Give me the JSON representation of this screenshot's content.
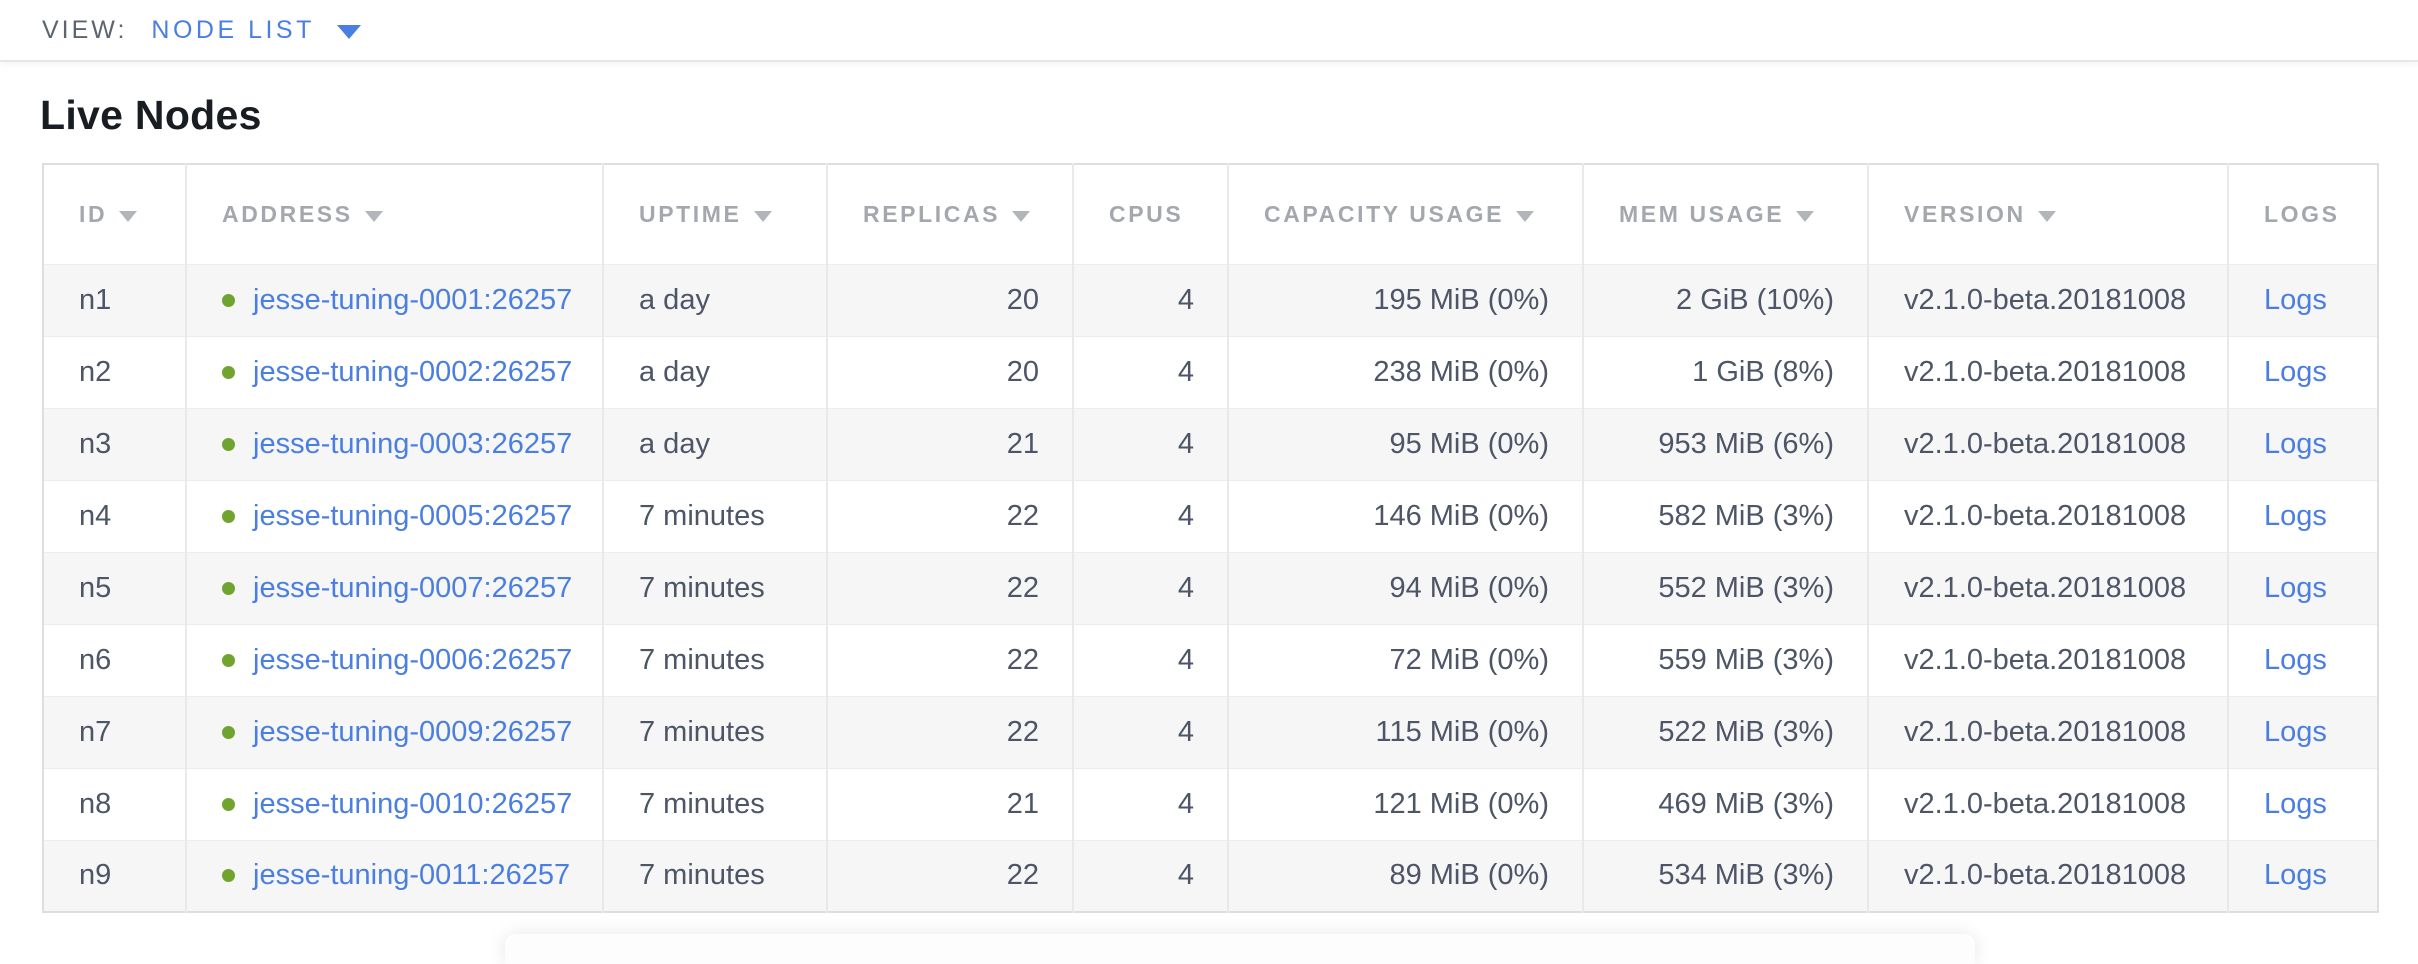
{
  "view_bar": {
    "label": "VIEW:",
    "selected": "NODE LIST"
  },
  "page": {
    "title": "Live Nodes"
  },
  "table": {
    "columns": [
      {
        "key": "id",
        "label": "ID",
        "sortable": true,
        "align": "left"
      },
      {
        "key": "address",
        "label": "ADDRESS",
        "sortable": true,
        "align": "left"
      },
      {
        "key": "uptime",
        "label": "UPTIME",
        "sortable": true,
        "align": "left"
      },
      {
        "key": "replicas",
        "label": "REPLICAS",
        "sortable": true,
        "align": "right"
      },
      {
        "key": "cpus",
        "label": "CPUS",
        "sortable": false,
        "align": "right"
      },
      {
        "key": "capacity",
        "label": "CAPACITY USAGE",
        "sortable": true,
        "align": "right"
      },
      {
        "key": "mem",
        "label": "MEM USAGE",
        "sortable": true,
        "align": "right"
      },
      {
        "key": "version",
        "label": "VERSION",
        "sortable": true,
        "align": "left"
      },
      {
        "key": "logs",
        "label": "LOGS",
        "sortable": false,
        "align": "left"
      }
    ],
    "rows": [
      {
        "id": "n1",
        "address": "jesse-tuning-0001:26257",
        "uptime": "a day",
        "replicas": "20",
        "cpus": "4",
        "capacity": "195 MiB (0%)",
        "mem": "2 GiB (10%)",
        "version": "v2.1.0-beta.20181008",
        "logs": "Logs"
      },
      {
        "id": "n2",
        "address": "jesse-tuning-0002:26257",
        "uptime": "a day",
        "replicas": "20",
        "cpus": "4",
        "capacity": "238 MiB (0%)",
        "mem": "1 GiB (8%)",
        "version": "v2.1.0-beta.20181008",
        "logs": "Logs"
      },
      {
        "id": "n3",
        "address": "jesse-tuning-0003:26257",
        "uptime": "a day",
        "replicas": "21",
        "cpus": "4",
        "capacity": "95 MiB (0%)",
        "mem": "953 MiB (6%)",
        "version": "v2.1.0-beta.20181008",
        "logs": "Logs"
      },
      {
        "id": "n4",
        "address": "jesse-tuning-0005:26257",
        "uptime": "7 minutes",
        "replicas": "22",
        "cpus": "4",
        "capacity": "146 MiB (0%)",
        "mem": "582 MiB (3%)",
        "version": "v2.1.0-beta.20181008",
        "logs": "Logs"
      },
      {
        "id": "n5",
        "address": "jesse-tuning-0007:26257",
        "uptime": "7 minutes",
        "replicas": "22",
        "cpus": "4",
        "capacity": "94 MiB (0%)",
        "mem": "552 MiB (3%)",
        "version": "v2.1.0-beta.20181008",
        "logs": "Logs"
      },
      {
        "id": "n6",
        "address": "jesse-tuning-0006:26257",
        "uptime": "7 minutes",
        "replicas": "22",
        "cpus": "4",
        "capacity": "72 MiB (0%)",
        "mem": "559 MiB (3%)",
        "version": "v2.1.0-beta.20181008",
        "logs": "Logs"
      },
      {
        "id": "n7",
        "address": "jesse-tuning-0009:26257",
        "uptime": "7 minutes",
        "replicas": "22",
        "cpus": "4",
        "capacity": "115 MiB (0%)",
        "mem": "522 MiB (3%)",
        "version": "v2.1.0-beta.20181008",
        "logs": "Logs"
      },
      {
        "id": "n8",
        "address": "jesse-tuning-0010:26257",
        "uptime": "7 minutes",
        "replicas": "21",
        "cpus": "4",
        "capacity": "121 MiB (0%)",
        "mem": "469 MiB (3%)",
        "version": "v2.1.0-beta.20181008",
        "logs": "Logs"
      },
      {
        "id": "n9",
        "address": "jesse-tuning-0011:26257",
        "uptime": "7 minutes",
        "replicas": "22",
        "cpus": "4",
        "capacity": "89 MiB (0%)",
        "mem": "534 MiB (3%)",
        "version": "v2.1.0-beta.20181008",
        "logs": "Logs"
      }
    ]
  },
  "colors": {
    "link": "#4a7ee1",
    "live_dot": "#6fa42f",
    "header_text": "#a4a8ae",
    "cell_text": "#4d5566",
    "row_stripe": "#f6f6f7",
    "border": "#e2e2e2",
    "view_label": "#5c6470",
    "title": "#191c20",
    "sort_arrow": "#b2b6bb"
  }
}
